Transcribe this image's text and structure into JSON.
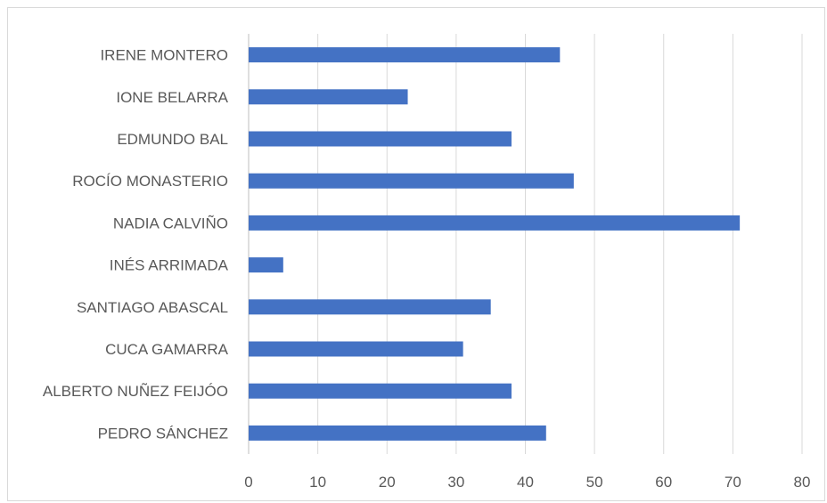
{
  "chart_data": {
    "type": "bar",
    "orientation": "horizontal",
    "categories": [
      "IRENE MONTERO",
      "IONE BELARRA",
      "EDMUNDO BAL",
      "ROCÍO MONASTERIO",
      "NADIA CALVIÑO",
      "INÉS ARRIMADA",
      "SANTIAGO ABASCAL",
      "CUCA GAMARRA",
      "ALBERTO NUÑEZ FEIJÓO",
      "PEDRO SÁNCHEZ"
    ],
    "values": [
      45,
      23,
      38,
      47,
      71,
      5,
      35,
      31,
      38,
      43
    ],
    "xlim": [
      0,
      80
    ],
    "xticks": [
      "0",
      "10",
      "20",
      "30",
      "40",
      "50",
      "60",
      "70",
      "80"
    ],
    "grid": "vertical",
    "legend": "none",
    "bar_color": "#4472C4",
    "grid_color": "#d9d9d9"
  }
}
